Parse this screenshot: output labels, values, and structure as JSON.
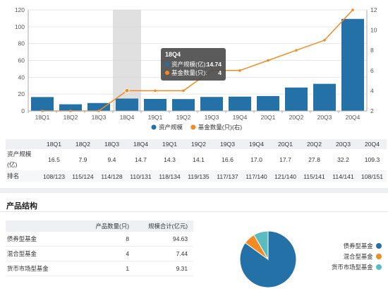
{
  "chart_data": {
    "type": "bar",
    "categories": [
      "18Q1",
      "18Q2",
      "18Q3",
      "18Q4",
      "19Q1",
      "19Q2",
      "19Q3",
      "19Q4",
      "20Q1",
      "20Q2",
      "20Q3",
      "20Q4"
    ],
    "series": [
      {
        "name": "资产规模",
        "type": "bar",
        "axis": "left",
        "color": "#2471a8",
        "values": [
          16.5,
          7.9,
          9.4,
          14.7,
          14.3,
          14.1,
          16.6,
          17.0,
          17.7,
          27.8,
          32.2,
          109.3
        ]
      },
      {
        "name": "基金数量(只)(右)",
        "type": "line",
        "axis": "right",
        "color": "#f28b22",
        "values": [
          2,
          2,
          2,
          4,
          4,
          4,
          6,
          6,
          7,
          8,
          9,
          12
        ]
      }
    ],
    "y_left": {
      "min": 0,
      "max": 120,
      "ticks": [
        0,
        20,
        40,
        60,
        80,
        100,
        120
      ]
    },
    "y_right": {
      "min": 2,
      "max": 12,
      "ticks": [
        2,
        4,
        6,
        8,
        10,
        12
      ]
    },
    "grid": true,
    "legend_position": "bottom",
    "highlight_category": "18Q4",
    "tooltip": {
      "title": "18Q4",
      "rows": [
        {
          "label": "资产规模(亿):",
          "value": "14.74",
          "color": "#2471a8"
        },
        {
          "label": "基金数量(只):",
          "value": "4",
          "color": "#f28b22"
        }
      ]
    }
  },
  "stats_table": {
    "headers": [
      "18Q1",
      "18Q2",
      "18Q3",
      "18Q4",
      "19Q1",
      "19Q2",
      "19Q3",
      "19Q4",
      "20Q1",
      "20Q2",
      "20Q3",
      "20Q4"
    ],
    "scale_label": "资产规模(亿)",
    "scale_values": [
      "16.5",
      "7.9",
      "9.4",
      "14.7",
      "14.3",
      "14.1",
      "16.6",
      "17.0",
      "17.7",
      "27.8",
      "32.2",
      "109.3"
    ],
    "rank_label": "排名",
    "rank_values": [
      "108/123",
      "115/124",
      "114/128",
      "110/131",
      "118/134",
      "119/135",
      "117/137",
      "117/140",
      "121/140",
      "115/141",
      "114/141",
      "108/151"
    ]
  },
  "structure": {
    "title": "产品结构",
    "headers": {
      "name": "",
      "count": "产品数量(只)",
      "scale": "规模合计(亿元)"
    },
    "rows": [
      {
        "name": "债券型基金",
        "count": "8",
        "scale": "94.63",
        "value": 94.63,
        "color": "#2471a8"
      },
      {
        "name": "混合型基金",
        "count": "4",
        "scale": "7.44",
        "value": 7.44,
        "color": "#f28b22"
      },
      {
        "name": "货币市场型基金",
        "count": "1",
        "scale": "9.31",
        "value": 9.31,
        "color": "#5bbcc0"
      }
    ]
  }
}
